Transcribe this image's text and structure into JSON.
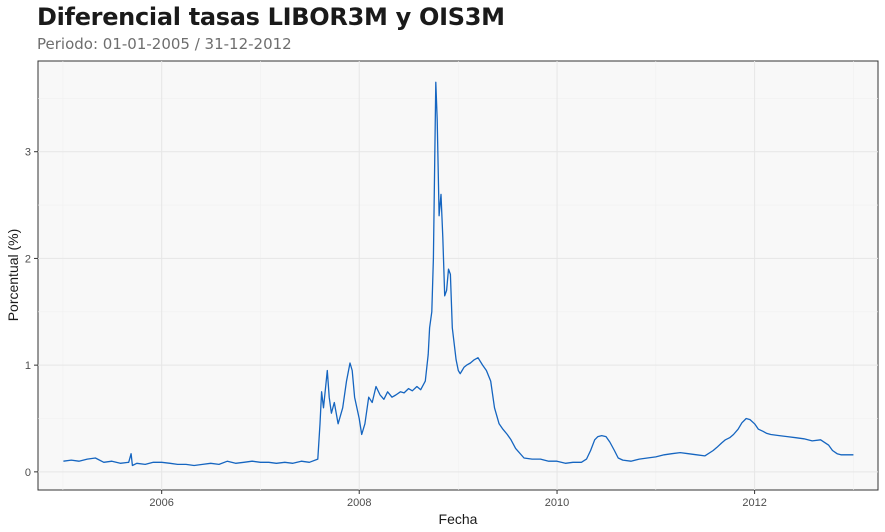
{
  "chart_data": {
    "type": "line",
    "title": "Diferencial tasas LIBOR3M y OIS3M",
    "subtitle": "Periodo: 01-01-2005 / 31-12-2012",
    "xlabel": "Fecha",
    "ylabel": "Porcentual (%)",
    "xlim": [
      "2004-10-01",
      "2013-04-01"
    ],
    "ylim": [
      -0.17,
      3.85
    ],
    "x_ticks": [
      "2006",
      "2008",
      "2010",
      "2012"
    ],
    "y_ticks": [
      0,
      1,
      2,
      3
    ],
    "grid": true,
    "line_color": "#1565c0",
    "panel_color": "#f8f8f8",
    "series": [
      {
        "x": [
          "2005-01-03",
          "2005-02-01",
          "2005-03-01",
          "2005-04-01",
          "2005-05-01",
          "2005-06-01",
          "2005-07-01",
          "2005-08-01",
          "2005-09-01",
          "2005-09-10",
          "2005-09-15",
          "2005-10-01",
          "2005-11-01",
          "2005-12-01",
          "2006-01-01",
          "2006-02-01",
          "2006-03-01",
          "2006-04-01",
          "2006-05-01",
          "2006-06-01",
          "2006-07-01",
          "2006-08-01",
          "2006-09-01",
          "2006-10-01",
          "2006-11-01",
          "2006-12-01",
          "2007-01-01",
          "2007-02-01",
          "2007-03-01",
          "2007-04-01",
          "2007-05-01",
          "2007-06-01",
          "2007-07-01",
          "2007-08-01",
          "2007-08-09",
          "2007-08-15",
          "2007-08-22",
          "2007-09-05",
          "2007-09-12",
          "2007-09-20",
          "2007-10-01",
          "2007-10-15",
          "2007-11-01",
          "2007-11-15",
          "2007-11-28",
          "2007-12-06",
          "2007-12-15",
          "2008-01-01",
          "2008-01-10",
          "2008-01-22",
          "2008-02-05",
          "2008-02-18",
          "2008-03-03",
          "2008-03-18",
          "2008-04-01",
          "2008-04-15",
          "2008-05-01",
          "2008-05-15",
          "2008-06-01",
          "2008-06-15",
          "2008-07-01",
          "2008-07-15",
          "2008-08-01",
          "2008-08-15",
          "2008-09-01",
          "2008-09-12",
          "2008-09-17",
          "2008-09-25",
          "2008-10-01",
          "2008-10-06",
          "2008-10-10",
          "2008-10-15",
          "2008-10-22",
          "2008-10-29",
          "2008-11-05",
          "2008-11-12",
          "2008-11-19",
          "2008-11-26",
          "2008-12-03",
          "2008-12-10",
          "2008-12-17",
          "2008-12-24",
          "2009-01-01",
          "2009-01-08",
          "2009-01-15",
          "2009-01-22",
          "2009-02-01",
          "2009-02-15",
          "2009-03-01",
          "2009-03-15",
          "2009-04-01",
          "2009-04-15",
          "2009-05-01",
          "2009-05-15",
          "2009-06-01",
          "2009-06-15",
          "2009-07-01",
          "2009-07-15",
          "2009-08-01",
          "2009-09-01",
          "2009-10-01",
          "2009-11-01",
          "2009-12-01",
          "2010-01-01",
          "2010-02-01",
          "2010-03-01",
          "2010-04-01",
          "2010-04-20",
          "2010-05-05",
          "2010-05-20",
          "2010-06-01",
          "2010-06-15",
          "2010-07-01",
          "2010-07-15",
          "2010-08-01",
          "2010-08-15",
          "2010-09-01",
          "2010-10-01",
          "2010-11-01",
          "2010-12-01",
          "2011-01-01",
          "2011-02-01",
          "2011-03-01",
          "2011-04-01",
          "2011-05-01",
          "2011-06-01",
          "2011-07-01",
          "2011-08-01",
          "2011-08-15",
          "2011-09-01",
          "2011-09-15",
          "2011-10-01",
          "2011-10-15",
          "2011-11-01",
          "2011-11-15",
          "2011-12-01",
          "2011-12-15",
          "2012-01-01",
          "2012-01-15",
          "2012-02-01",
          "2012-02-15",
          "2012-03-01",
          "2012-04-01",
          "2012-05-01",
          "2012-06-01",
          "2012-07-01",
          "2012-08-01",
          "2012-09-01",
          "2012-10-01",
          "2012-10-15",
          "2012-11-01",
          "2012-11-15",
          "2012-12-01",
          "2012-12-15",
          "2012-12-31"
        ],
        "y": [
          0.1,
          0.11,
          0.1,
          0.12,
          0.13,
          0.09,
          0.1,
          0.08,
          0.09,
          0.17,
          0.06,
          0.08,
          0.07,
          0.09,
          0.09,
          0.08,
          0.07,
          0.07,
          0.06,
          0.07,
          0.08,
          0.07,
          0.1,
          0.08,
          0.09,
          0.1,
          0.09,
          0.09,
          0.08,
          0.09,
          0.08,
          0.1,
          0.09,
          0.12,
          0.45,
          0.75,
          0.6,
          0.95,
          0.7,
          0.55,
          0.65,
          0.45,
          0.6,
          0.85,
          1.02,
          0.95,
          0.7,
          0.5,
          0.35,
          0.45,
          0.7,
          0.65,
          0.8,
          0.72,
          0.68,
          0.75,
          0.7,
          0.72,
          0.75,
          0.74,
          0.78,
          0.76,
          0.8,
          0.77,
          0.85,
          1.1,
          1.35,
          1.5,
          2.0,
          2.9,
          3.65,
          3.3,
          2.4,
          2.6,
          2.2,
          1.65,
          1.7,
          1.9,
          1.85,
          1.35,
          1.2,
          1.05,
          0.95,
          0.92,
          0.95,
          0.98,
          1.0,
          1.02,
          1.05,
          1.07,
          1.0,
          0.95,
          0.85,
          0.6,
          0.45,
          0.4,
          0.35,
          0.3,
          0.22,
          0.13,
          0.12,
          0.12,
          0.1,
          0.1,
          0.08,
          0.09,
          0.09,
          0.12,
          0.2,
          0.3,
          0.33,
          0.34,
          0.33,
          0.28,
          0.2,
          0.13,
          0.11,
          0.1,
          0.12,
          0.13,
          0.14,
          0.16,
          0.17,
          0.18,
          0.17,
          0.16,
          0.15,
          0.2,
          0.23,
          0.27,
          0.3,
          0.32,
          0.35,
          0.4,
          0.46,
          0.5,
          0.49,
          0.45,
          0.4,
          0.38,
          0.36,
          0.35,
          0.34,
          0.33,
          0.32,
          0.31,
          0.29,
          0.3,
          0.25,
          0.2,
          0.17,
          0.16,
          0.16,
          0.16,
          0.16
        ]
      }
    ]
  }
}
